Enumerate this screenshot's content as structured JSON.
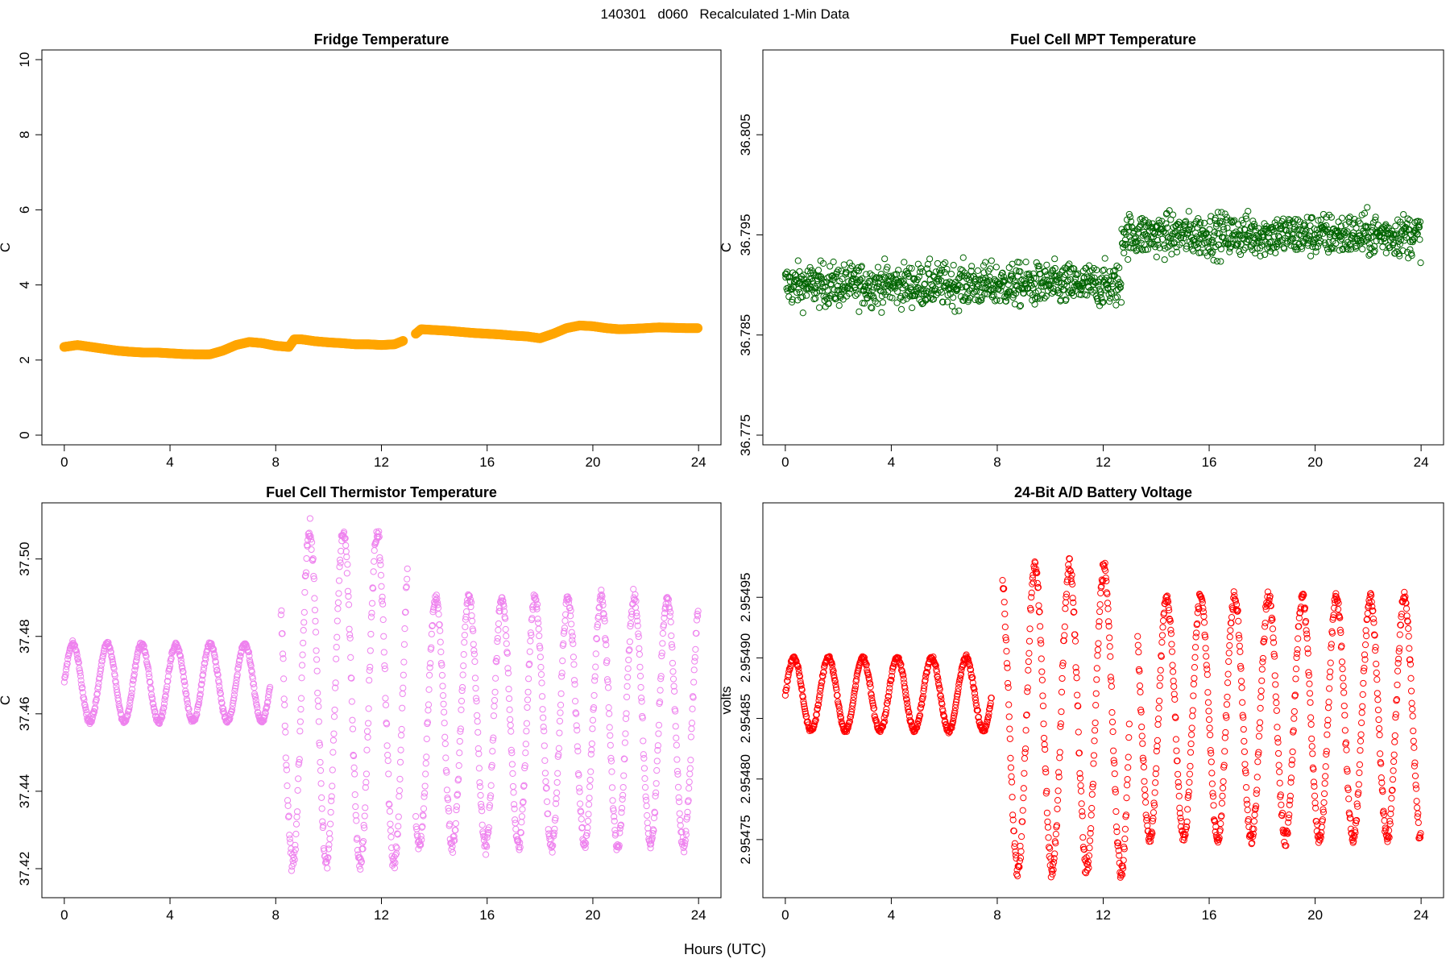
{
  "page": {
    "title": "140301   d060   Recalculated 1-Min Data",
    "xlabel": "Hours (UTC)"
  },
  "chart_data": [
    {
      "type": "scatter",
      "title": "Fridge Temperature",
      "xlabel": "",
      "ylabel": "C",
      "xlim": [
        0,
        24
      ],
      "ylim": [
        0,
        10
      ],
      "xticks": [
        0,
        4,
        8,
        12,
        16,
        20,
        24
      ],
      "yticks": [
        0,
        2,
        4,
        6,
        8,
        10
      ],
      "ytick_labels": [
        "0",
        "2",
        "4",
        "6",
        "8",
        "10"
      ],
      "color": "#FFA500",
      "marker": "filled",
      "series": [
        {
          "name": "Fridge Temperature",
          "x": [
            0,
            0.5,
            1,
            1.5,
            2,
            2.5,
            3,
            3.5,
            4,
            4.5,
            5,
            5.5,
            6,
            6.5,
            7,
            7.5,
            8,
            8.5,
            8.7,
            9,
            9.5,
            10,
            10.5,
            11,
            11.5,
            12,
            12.5,
            12.85,
            13.3,
            13.5,
            14,
            14.5,
            15,
            15.5,
            16,
            16.5,
            17,
            17.5,
            18,
            18.5,
            19,
            19.5,
            20,
            20.5,
            21,
            21.5,
            22,
            22.5,
            23,
            23.5,
            24
          ],
          "y": [
            2.35,
            2.4,
            2.35,
            2.3,
            2.25,
            2.22,
            2.2,
            2.2,
            2.18,
            2.16,
            2.15,
            2.15,
            2.25,
            2.4,
            2.48,
            2.45,
            2.38,
            2.35,
            2.55,
            2.55,
            2.5,
            2.47,
            2.45,
            2.42,
            2.42,
            2.4,
            2.42,
            2.52,
            2.7,
            2.82,
            2.8,
            2.78,
            2.75,
            2.72,
            2.7,
            2.68,
            2.65,
            2.63,
            2.58,
            2.7,
            2.85,
            2.92,
            2.9,
            2.85,
            2.82,
            2.83,
            2.85,
            2.87,
            2.86,
            2.85,
            2.85
          ]
        }
      ]
    },
    {
      "type": "scatter",
      "title": "Fuel Cell MPT Temperature",
      "xlabel": "",
      "ylabel": "C",
      "xlim": [
        0,
        24
      ],
      "ylim": [
        36.775,
        36.8125
      ],
      "xticks": [
        0,
        4,
        8,
        12,
        16,
        20,
        24
      ],
      "yticks": [
        36.775,
        36.785,
        36.795,
        36.805
      ],
      "ytick_labels": [
        "36.775",
        "36.785",
        "36.795",
        "36.805"
      ],
      "color": "#006400",
      "marker": "open",
      "series": [
        {
          "name": "Fuel Cell MPT Temperature",
          "note": "noisy 1-min data; segment means and spread",
          "segments": [
            {
              "x_range": [
                0,
                12.7
              ],
              "mean": 36.79,
              "spread": 0.0035
            },
            {
              "x_range": [
                12.7,
                24
              ],
              "mean": 36.795,
              "spread": 0.0035
            }
          ]
        }
      ]
    },
    {
      "type": "scatter",
      "title": "Fuel Cell Thermistor Temperature",
      "xlabel": "",
      "ylabel": "C",
      "xlim": [
        0,
        24
      ],
      "ylim": [
        37.415,
        37.512
      ],
      "xticks": [
        0,
        4,
        8,
        12,
        16,
        20,
        24
      ],
      "yticks": [
        37.42,
        37.44,
        37.46,
        37.48,
        37.5
      ],
      "ytick_labels": [
        "37.42",
        "37.44",
        "37.46",
        "37.48",
        "37.50"
      ],
      "color": "#EE82EE",
      "marker": "open",
      "series": [
        {
          "name": "Fuel Cell Thermistor Temperature",
          "note": "oscillating series; segment center and amplitude",
          "segments": [
            {
              "x_range": [
                0,
                7.8
              ],
              "center": 37.468,
              "amplitude": 0.01,
              "period_h": 1.3
            },
            {
              "x_range": [
                8.2,
                13
              ],
              "center": 37.464,
              "amplitude": 0.043,
              "period_h": 1.28
            },
            {
              "x_range": [
                13.3,
                24
              ],
              "center": 37.458,
              "amplitude": 0.032,
              "period_h": 1.25
            }
          ]
        }
      ]
    },
    {
      "type": "scatter",
      "title": "24-Bit A/D Battery Voltage",
      "xlabel": "",
      "ylabel": "volts",
      "xlim": [
        0,
        24
      ],
      "ylim": [
        2.95471,
        2.95502
      ],
      "xticks": [
        0,
        4,
        8,
        12,
        16,
        20,
        24
      ],
      "yticks": [
        2.95475,
        2.9548,
        2.95485,
        2.9549,
        2.95495
      ],
      "ytick_labels": [
        "2.95475",
        "2.95480",
        "2.95485",
        "2.95490",
        "2.95495"
      ],
      "color": "#FF0000",
      "marker": "open",
      "series": [
        {
          "name": "24-Bit A/D Battery Voltage",
          "note": "oscillating series; segment center and amplitude",
          "segments": [
            {
              "x_range": [
                0,
                7.8
              ],
              "center": 2.95487,
              "amplitude": 3e-05,
              "period_h": 1.3
            },
            {
              "x_range": [
                8.2,
                13
              ],
              "center": 2.95485,
              "amplitude": 0.000125,
              "period_h": 1.3
            },
            {
              "x_range": [
                13.3,
                24
              ],
              "center": 2.95485,
              "amplitude": 0.0001,
              "period_h": 1.28
            }
          ]
        }
      ]
    }
  ]
}
